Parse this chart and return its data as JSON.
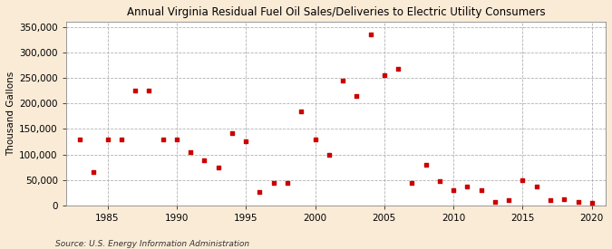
{
  "title": "Annual Virginia Residual Fuel Oil Sales/Deliveries to Electric Utility Consumers",
  "ylabel": "Thousand Gallons",
  "source": "Source: U.S. Energy Information Administration",
  "background_color": "#faebd7",
  "plot_background_color": "#ffffff",
  "marker_color": "#cc0000",
  "marker": "s",
  "markersize": 3.5,
  "xlim": [
    1982,
    2021
  ],
  "ylim": [
    0,
    360000
  ],
  "yticks": [
    0,
    50000,
    100000,
    150000,
    200000,
    250000,
    300000,
    350000
  ],
  "xticks": [
    1985,
    1990,
    1995,
    2000,
    2005,
    2010,
    2015,
    2020
  ],
  "years": [
    1983,
    1984,
    1985,
    1986,
    1987,
    1988,
    1989,
    1990,
    1991,
    1992,
    1993,
    1994,
    1995,
    1996,
    1997,
    1998,
    1999,
    2000,
    2001,
    2002,
    2003,
    2004,
    2005,
    2006,
    2007,
    2008,
    2009,
    2010,
    2011,
    2012,
    2013,
    2014,
    2015,
    2016,
    2017,
    2018,
    2019,
    2020
  ],
  "values": [
    130000,
    65000,
    130000,
    130000,
    225000,
    225000,
    130000,
    130000,
    105000,
    88000,
    75000,
    142000,
    125000,
    27000,
    45000,
    45000,
    185000,
    130000,
    100000,
    244000,
    215000,
    335000,
    255000,
    268000,
    45000,
    80000,
    48000,
    30000,
    37000,
    30000,
    8000,
    10000,
    50000,
    37000,
    10000,
    13000,
    8000,
    5000
  ],
  "title_fontsize": 8.5,
  "ylabel_fontsize": 7.5,
  "tick_fontsize": 7.5,
  "source_fontsize": 6.5
}
